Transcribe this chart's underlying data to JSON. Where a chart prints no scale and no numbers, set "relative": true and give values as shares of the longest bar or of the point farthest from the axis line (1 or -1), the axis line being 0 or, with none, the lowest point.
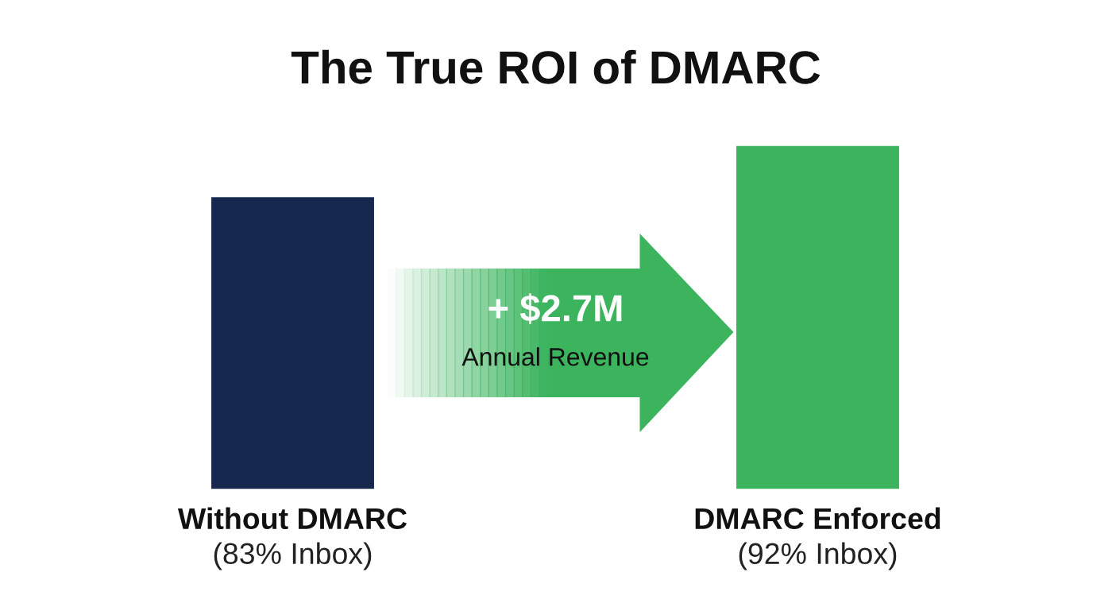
{
  "chart_data": {
    "type": "bar",
    "title": "The True ROI of DMARC",
    "categories": [
      "Without DMARC\n(83% Inbox)",
      "DMARC Enforced\n(92% Inbox)"
    ],
    "values": [
      0.85,
      1
    ],
    "colors": [
      "#16284d",
      "#3cb45e"
    ],
    "relative": true,
    "annotations": [
      "+ $2.7M",
      "Annual Revenue"
    ]
  }
}
